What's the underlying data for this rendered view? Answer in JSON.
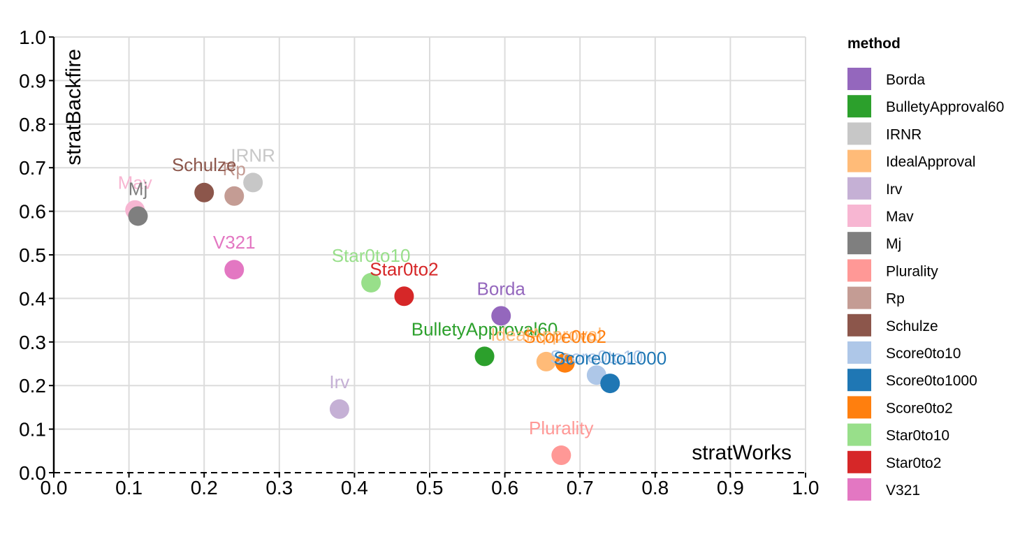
{
  "chart_data": {
    "type": "scatter",
    "title": "",
    "xlabel": "stratWorks",
    "ylabel": "stratBackfire",
    "xlim": [
      0.0,
      1.0
    ],
    "ylim": [
      0.0,
      1.0
    ],
    "xticks": [
      "0.0",
      "0.1",
      "0.2",
      "0.3",
      "0.4",
      "0.5",
      "0.6",
      "0.7",
      "0.8",
      "0.9",
      "1.0"
    ],
    "yticks": [
      "0.0",
      "0.1",
      "0.2",
      "0.3",
      "0.4",
      "0.5",
      "0.6",
      "0.7",
      "0.8",
      "0.9",
      "1.0"
    ],
    "grid": true,
    "legend": {
      "title": "method",
      "placement": "right"
    },
    "points": [
      {
        "name": "Borda",
        "x": 0.595,
        "y": 0.36,
        "color": "#9467bd"
      },
      {
        "name": "BulletyApproval60",
        "x": 0.573,
        "y": 0.267,
        "color": "#2ca02c"
      },
      {
        "name": "IRNR",
        "x": 0.265,
        "y": 0.666,
        "color": "#c7c7c7"
      },
      {
        "name": "IdealApproval",
        "x": 0.655,
        "y": 0.255,
        "color": "#ffbb78"
      },
      {
        "name": "Irv",
        "x": 0.38,
        "y": 0.146,
        "color": "#c5b0d5"
      },
      {
        "name": "Mav",
        "x": 0.108,
        "y": 0.603,
        "color": "#f7b6d2"
      },
      {
        "name": "Mj",
        "x": 0.112,
        "y": 0.589,
        "color": "#7f7f7f"
      },
      {
        "name": "Plurality",
        "x": 0.675,
        "y": 0.04,
        "color": "#ff9896"
      },
      {
        "name": "Rp",
        "x": 0.24,
        "y": 0.635,
        "color": "#c49c94"
      },
      {
        "name": "Schulze",
        "x": 0.2,
        "y": 0.643,
        "color": "#8c564b"
      },
      {
        "name": "Score0to10",
        "x": 0.722,
        "y": 0.224,
        "color": "#aec7e8"
      },
      {
        "name": "Score0to1000",
        "x": 0.74,
        "y": 0.205,
        "color": "#1f77b4"
      },
      {
        "name": "Score0to2",
        "x": 0.68,
        "y": 0.252,
        "color": "#ff7f0e"
      },
      {
        "name": "Star0to10",
        "x": 0.422,
        "y": 0.436,
        "color": "#98df8a"
      },
      {
        "name": "Star0to2",
        "x": 0.466,
        "y": 0.405,
        "color": "#d62728"
      },
      {
        "name": "V321",
        "x": 0.24,
        "y": 0.466,
        "color": "#e377c2"
      }
    ]
  }
}
